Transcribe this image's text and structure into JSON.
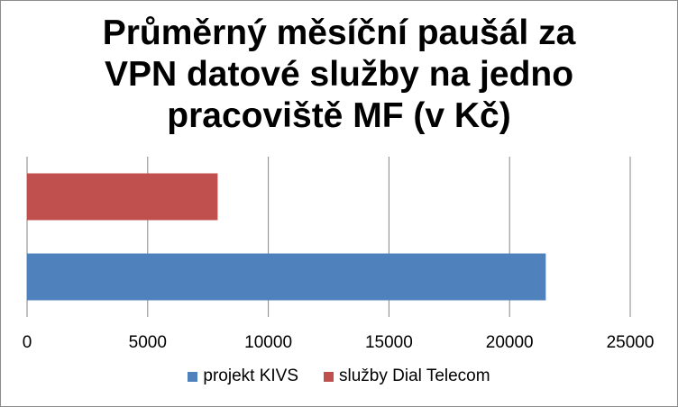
{
  "chart_data": {
    "type": "bar",
    "orientation": "horizontal",
    "title_lines": [
      "Průměrný měsíční paušál za",
      "VPN datové služby na jedno",
      "pracoviště MF (v Kč)"
    ],
    "series": [
      {
        "name": "projekt KIVS",
        "value": 21500,
        "color": "#4f81bd"
      },
      {
        "name": "služby Dial Telecom",
        "value": 7900,
        "color": "#c0504d"
      }
    ],
    "xlim": [
      0,
      25000
    ],
    "xticks": [
      0,
      5000,
      10000,
      15000,
      20000,
      25000
    ],
    "grid": true,
    "legend_position": "bottom"
  }
}
